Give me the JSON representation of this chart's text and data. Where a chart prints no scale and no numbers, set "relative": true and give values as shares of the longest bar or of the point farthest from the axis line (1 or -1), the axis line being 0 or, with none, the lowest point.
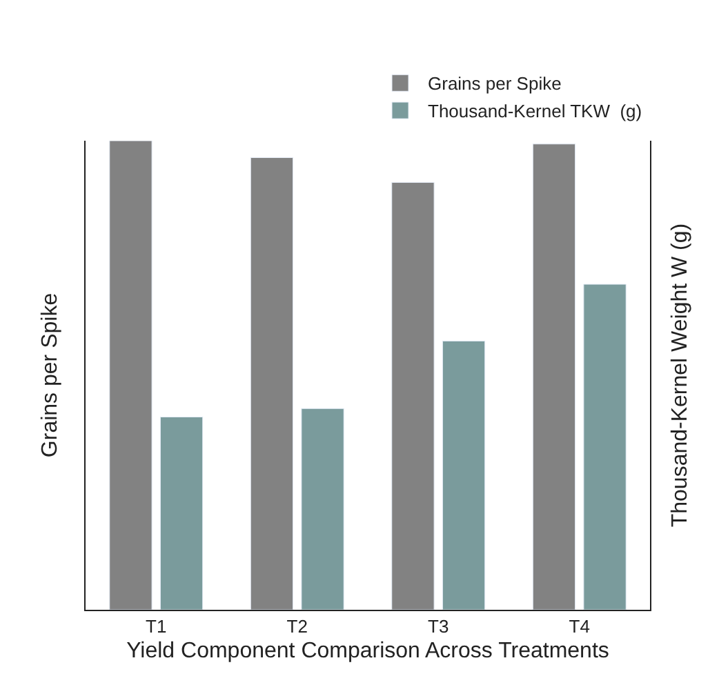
{
  "chart_data": {
    "type": "bar",
    "categories": [
      "T1",
      "T2",
      "T3",
      "T4"
    ],
    "xlabel": "Yield Component Comparison Across Treatments",
    "ylabel": "Grains per Spike",
    "y2label": "Thousand-Kernel Weight W (g)",
    "relative": true,
    "series": [
      {
        "name": "Grains per Spike",
        "color": "#828282",
        "values": [
          1,
          0.964,
          0.911,
          0.993
        ]
      },
      {
        "name": "Thousand-Kernel TKW  (g)",
        "color": "#7a9b9c",
        "values": [
          0.411,
          0.429,
          0.573,
          0.694
        ],
        "axis": "y2"
      }
    ],
    "legend": "top right"
  }
}
